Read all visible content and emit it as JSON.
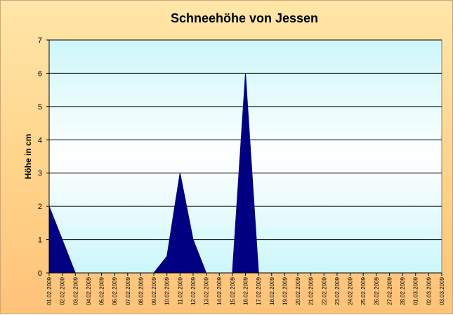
{
  "chart_data": {
    "type": "area",
    "title": "Schneehöhe von Jessen",
    "xlabel": "",
    "ylabel": "Höhe in cm",
    "ylim": [
      0,
      7
    ],
    "yticks": [
      0,
      1,
      2,
      3,
      4,
      5,
      6,
      7
    ],
    "grid": true,
    "legend": "none",
    "categories": [
      "01.02.2009",
      "02.02.2009",
      "03.02.2009",
      "04.02.2009",
      "05.02.2009",
      "06.02.2009",
      "07.02.2009",
      "08.02.2009",
      "09.02.2009",
      "10.02.2009",
      "11.02.2009",
      "12.02.2009",
      "13.02.2009",
      "14.02.2009",
      "15.02.2009",
      "16.02.2009",
      "17.02.2009",
      "18.02.2009",
      "19.02.2009",
      "20.02.2009",
      "21.02.2009",
      "22.02.2009",
      "23.02.2009",
      "24.02.2009",
      "25.02.2009",
      "26.02.2009",
      "27.02.2009",
      "28.02.2009",
      "01.03.2009",
      "02.03.2009",
      "03.03.2009"
    ],
    "values": [
      2,
      1,
      0,
      0,
      0,
      0,
      0,
      0,
      0,
      0.5,
      3,
      1,
      0,
      0,
      0,
      6,
      0,
      0,
      0,
      0,
      0,
      0,
      0,
      0,
      0,
      0,
      0,
      0,
      0,
      0,
      0
    ],
    "colors": {
      "area_fill": "#000080",
      "plot_bg_top": "#ccf6fa",
      "plot_bg_bottom": "#ffffff",
      "gridline": "#000000"
    }
  }
}
